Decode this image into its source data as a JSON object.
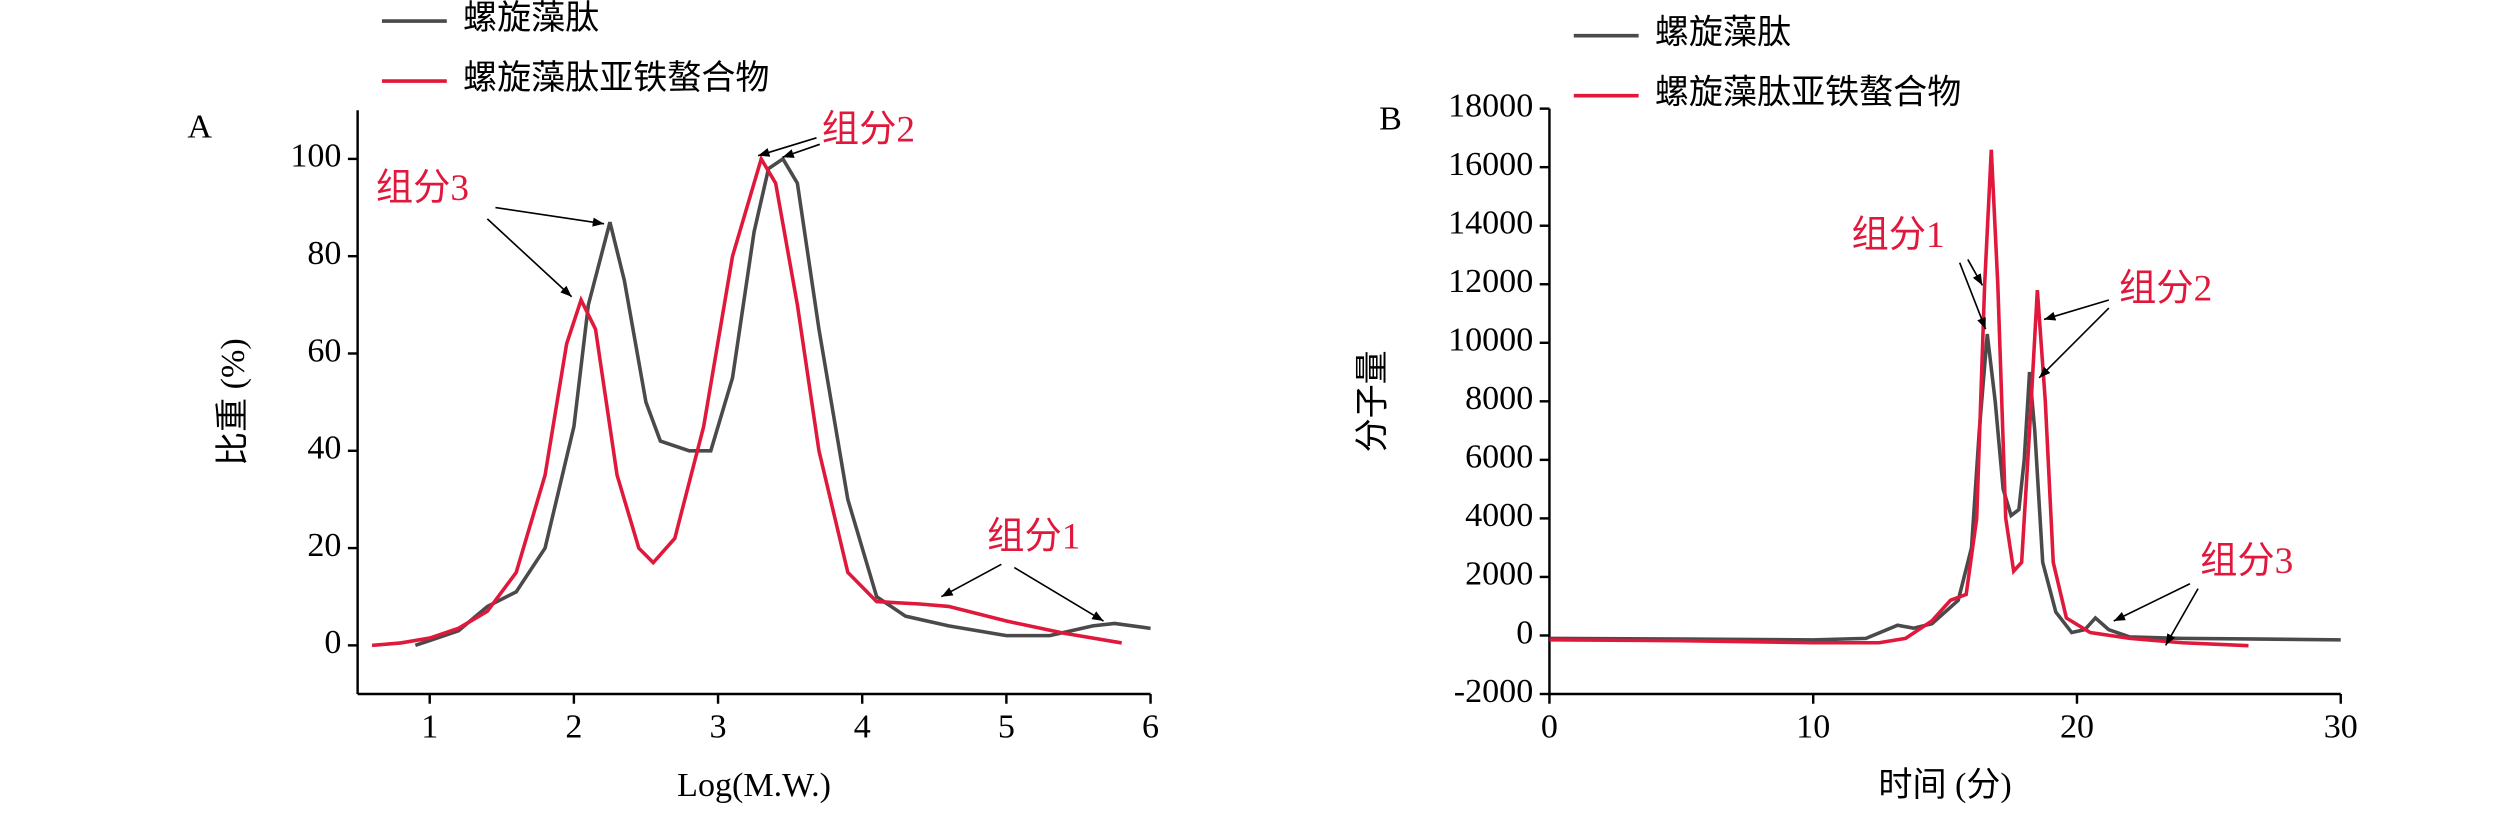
{
  "chart_data": [
    {
      "type": "line",
      "panel_label": "A",
      "xlabel": "Log(M.W.)",
      "ylabel": "比重 (%)",
      "xlim": [
        0.5,
        6
      ],
      "xticks": [
        1,
        2,
        3,
        4,
        5,
        6
      ],
      "ylim": [
        -10,
        110
      ],
      "yticks": [
        0,
        20,
        40,
        60,
        80,
        100
      ],
      "annotations": [
        "组分3",
        "组分2",
        "组分1"
      ],
      "series": [
        {
          "name": "螺旋藻肽",
          "color": "#4a4a4a",
          "x": [
            0.9,
            1.0,
            1.2,
            1.4,
            1.6,
            1.8,
            2.0,
            2.1,
            2.25,
            2.35,
            2.5,
            2.6,
            2.8,
            2.95,
            3.1,
            3.25,
            3.35,
            3.45,
            3.55,
            3.7,
            3.9,
            4.1,
            4.3,
            4.6,
            5.0,
            5.3,
            5.6,
            5.75,
            6.0
          ],
          "values": [
            0,
            1,
            3,
            8,
            11,
            20,
            45,
            70,
            87,
            75,
            50,
            42,
            40,
            40,
            55,
            85,
            98,
            100,
            95,
            65,
            30,
            10,
            6,
            4,
            2,
            2,
            4,
            4.5,
            3.5
          ]
        },
        {
          "name": "螺旋藻肽亚铁螯合物",
          "color": "#e0183c",
          "x": [
            0.6,
            0.8,
            1.0,
            1.2,
            1.4,
            1.6,
            1.8,
            1.95,
            2.05,
            2.15,
            2.3,
            2.45,
            2.55,
            2.7,
            2.9,
            3.1,
            3.3,
            3.4,
            3.55,
            3.7,
            3.9,
            4.1,
            4.4,
            4.6,
            5.0,
            5.4,
            5.8
          ],
          "values": [
            0,
            0.5,
            1.5,
            3.5,
            7,
            15,
            35,
            62,
            71,
            65,
            35,
            20,
            17,
            22,
            45,
            80,
            100,
            95,
            70,
            40,
            15,
            9,
            8.5,
            8,
            5,
            2.5,
            0.5
          ]
        }
      ]
    },
    {
      "type": "line",
      "panel_label": "B",
      "xlabel": "时间 (分)",
      "ylabel": "分子量",
      "xlim": [
        0,
        30
      ],
      "xticks": [
        0,
        10,
        20,
        30
      ],
      "ylim": [
        -2000,
        18000
      ],
      "yticks": [
        -2000,
        0,
        2000,
        4000,
        6000,
        8000,
        10000,
        12000,
        14000,
        16000,
        18000
      ],
      "annotations": [
        "组分1",
        "组分2",
        "组分3"
      ],
      "series": [
        {
          "name": "螺旋藻肽",
          "color": "#4a4a4a",
          "x": [
            0,
            5,
            10,
            12,
            13.2,
            13.8,
            14.5,
            15.5,
            16.0,
            16.3,
            16.6,
            16.9,
            17.2,
            17.5,
            17.8,
            18.0,
            18.2,
            18.4,
            18.7,
            19.2,
            19.8,
            20.3,
            20.7,
            21.2,
            22,
            24,
            27,
            30
          ],
          "values": [
            -100,
            -120,
            -150,
            -100,
            350,
            250,
            400,
            1200,
            3000,
            7000,
            10300,
            8000,
            5000,
            4100,
            4300,
            6000,
            9000,
            7000,
            2500,
            800,
            100,
            200,
            600,
            200,
            -50,
            -100,
            -120,
            -150
          ]
        },
        {
          "name": "螺旋藻肽亚铁螯合物",
          "color": "#e0183c",
          "x": [
            0,
            5,
            10,
            12.5,
            13.5,
            14.5,
            15.2,
            15.8,
            16.2,
            16.5,
            16.75,
            17.0,
            17.3,
            17.6,
            17.9,
            18.2,
            18.5,
            18.8,
            19.1,
            19.6,
            20.5,
            22,
            24,
            26.5
          ],
          "values": [
            -150,
            -180,
            -250,
            -250,
            -100,
            500,
            1200,
            1400,
            4000,
            12000,
            16600,
            12000,
            4000,
            2200,
            2500,
            7000,
            11800,
            8000,
            2500,
            600,
            100,
            -100,
            -250,
            -350
          ]
        }
      ]
    }
  ]
}
